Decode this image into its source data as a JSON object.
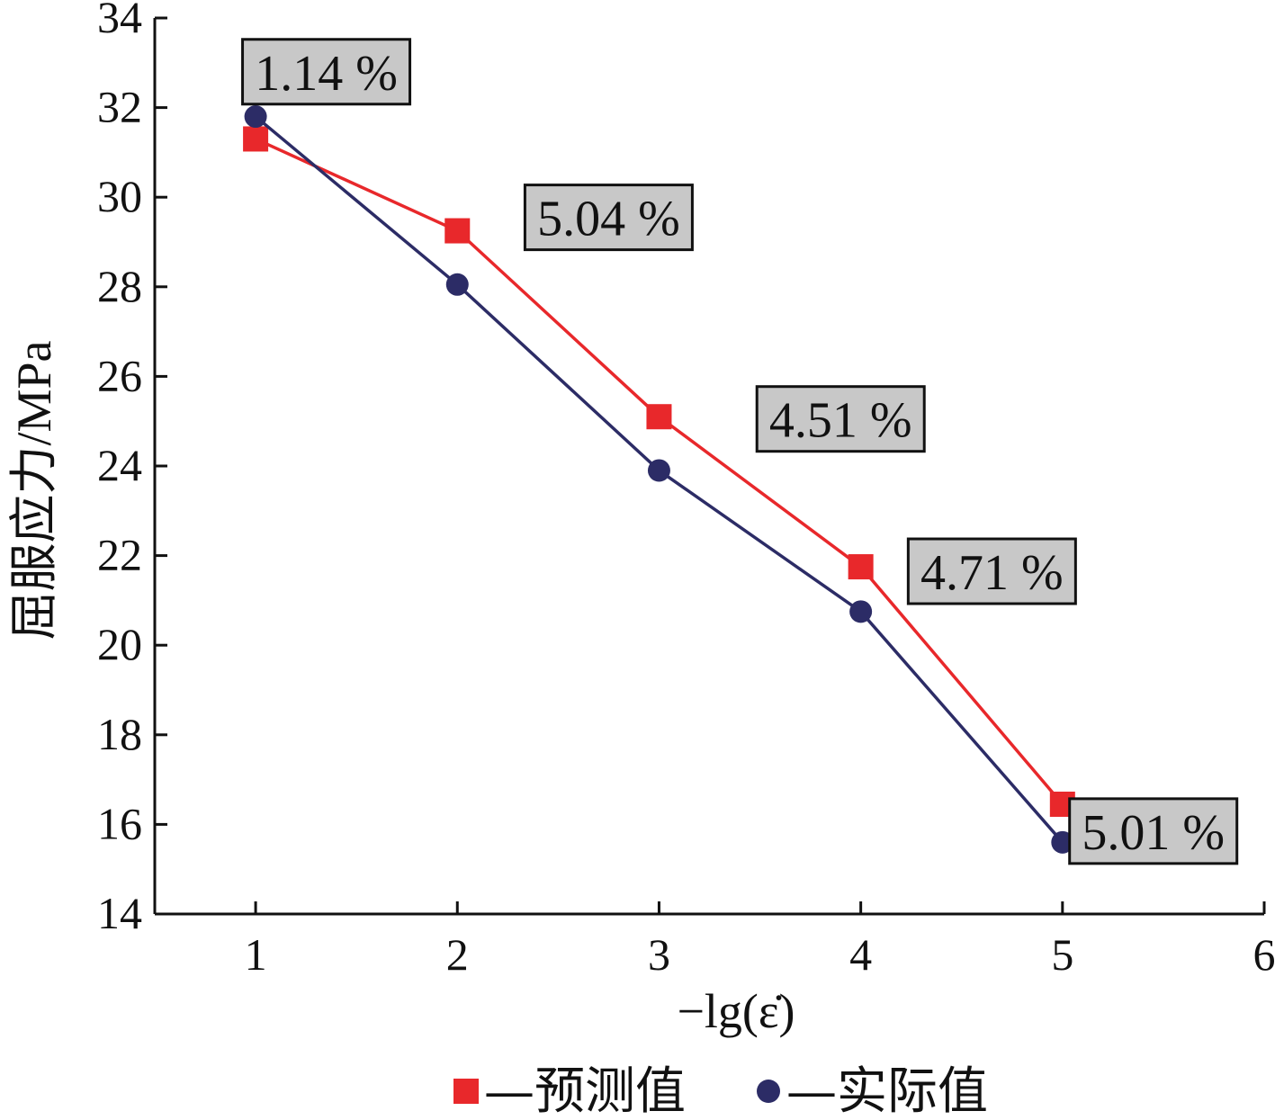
{
  "chart_data": {
    "type": "line",
    "xlabel": "−lg(ε̇)",
    "ylabel": "屈服应力/MPa",
    "xlim": [
      0.5,
      6
    ],
    "ylim": [
      14,
      34
    ],
    "x_ticks": [
      1,
      2,
      3,
      4,
      5,
      6
    ],
    "y_ticks": [
      14,
      16,
      18,
      20,
      22,
      24,
      26,
      28,
      30,
      32,
      34
    ],
    "grid": false,
    "legend_position": "bottom",
    "series": [
      {
        "name": "—预测值",
        "marker": "square",
        "color": "#e8282b",
        "x": [
          1,
          2,
          3,
          4,
          5
        ],
        "values": [
          31.3,
          29.25,
          25.1,
          21.75,
          16.45
        ]
      },
      {
        "name": "—实际值",
        "marker": "circle",
        "color": "#2c2c66",
        "x": [
          1,
          2,
          3,
          4,
          5
        ],
        "values": [
          31.8,
          28.05,
          23.9,
          20.75,
          15.6
        ]
      }
    ],
    "annotations": [
      {
        "text": "1.14 %",
        "x": 1.35,
        "y": 32.8
      },
      {
        "text": "5.04 %",
        "x": 2.75,
        "y": 29.55
      },
      {
        "text": "4.51 %",
        "x": 3.9,
        "y": 25.05
      },
      {
        "text": "4.71 %",
        "x": 4.65,
        "y": 21.65
      },
      {
        "text": "5.01 %",
        "x": 5.45,
        "y": 15.85
      }
    ]
  }
}
